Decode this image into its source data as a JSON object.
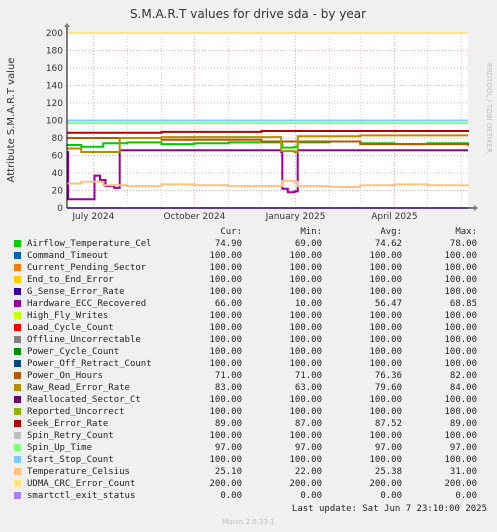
{
  "chart_data": {
    "type": "line",
    "title": "S.M.A.R.T values for drive sda - by year",
    "ylabel": "Attribute S.M.A.R.T value",
    "side_label": "RRDTOOL / TOBI OETIKER",
    "ylim": [
      0,
      200
    ],
    "yticks": [
      0,
      20,
      40,
      60,
      80,
      100,
      120,
      140,
      160,
      180,
      200
    ],
    "xlim": [
      "2024-06-07",
      "2025-06-07"
    ],
    "xticks": [
      {
        "label": "July 2024",
        "date": "2024-07-01"
      },
      {
        "label": "October 2024",
        "date": "2024-10-01"
      },
      {
        "label": "January 2025",
        "date": "2025-01-01"
      },
      {
        "label": "April 2025",
        "date": "2025-04-01"
      }
    ],
    "grid": true,
    "legend_position": "bottom",
    "series": [
      {
        "name": "Airflow_Temperature_Cel",
        "color": "#00cc00",
        "points": [
          [
            "2024-06-07",
            72
          ],
          [
            "2024-06-20",
            70
          ],
          [
            "2024-07-10",
            74
          ],
          [
            "2024-08-01",
            75
          ],
          [
            "2024-09-01",
            73
          ],
          [
            "2024-10-01",
            74
          ],
          [
            "2024-11-01",
            75
          ],
          [
            "2024-12-10",
            75
          ],
          [
            "2024-12-20",
            69
          ],
          [
            "2024-12-31",
            70
          ],
          [
            "2025-01-03",
            75
          ],
          [
            "2025-02-01",
            76
          ],
          [
            "2025-03-01",
            74
          ],
          [
            "2025-04-01",
            73
          ],
          [
            "2025-05-01",
            74
          ],
          [
            "2025-06-07",
            75
          ]
        ]
      },
      {
        "name": "Command_Timeout",
        "color": "#0066b3",
        "points": [
          [
            "2024-06-07",
            100
          ],
          [
            "2025-06-07",
            100
          ]
        ]
      },
      {
        "name": "Current_Pending_Sector",
        "color": "#ff8000",
        "points": [
          [
            "2024-06-07",
            100
          ],
          [
            "2025-06-07",
            100
          ]
        ]
      },
      {
        "name": "End_to_End_Error",
        "color": "#ffcc00",
        "points": [
          [
            "2024-06-07",
            100
          ],
          [
            "2025-06-07",
            100
          ]
        ]
      },
      {
        "name": "G_Sense_Error_Rate",
        "color": "#330099",
        "points": [
          [
            "2024-06-07",
            100
          ],
          [
            "2025-06-07",
            100
          ]
        ]
      },
      {
        "name": "Hardware_ECC_Recovered",
        "color": "#990099",
        "points": [
          [
            "2024-06-07",
            64
          ],
          [
            "2024-06-08",
            10
          ],
          [
            "2024-06-20",
            10
          ],
          [
            "2024-07-01",
            10
          ],
          [
            "2024-07-02",
            37
          ],
          [
            "2024-07-07",
            32
          ],
          [
            "2024-07-12",
            25
          ],
          [
            "2024-07-20",
            23
          ],
          [
            "2024-07-25",
            66
          ],
          [
            "2024-09-01",
            66
          ],
          [
            "2024-10-01",
            66
          ],
          [
            "2024-11-01",
            66
          ],
          [
            "2024-12-10",
            66
          ],
          [
            "2024-12-19",
            64
          ],
          [
            "2024-12-20",
            22
          ],
          [
            "2024-12-25",
            18
          ],
          [
            "2024-12-31",
            19
          ],
          [
            "2025-01-03",
            66
          ],
          [
            "2025-02-01",
            66
          ],
          [
            "2025-04-01",
            66
          ],
          [
            "2025-06-07",
            66
          ]
        ]
      },
      {
        "name": "High_Fly_Writes",
        "color": "#ccff00",
        "points": [
          [
            "2024-06-07",
            100
          ],
          [
            "2025-06-07",
            100
          ]
        ]
      },
      {
        "name": "Load_Cycle_Count",
        "color": "#ff0000",
        "points": [
          [
            "2024-06-07",
            100
          ],
          [
            "2025-06-07",
            100
          ]
        ]
      },
      {
        "name": "Offline_Uncorrectable",
        "color": "#808080",
        "points": [
          [
            "2024-06-07",
            100
          ],
          [
            "2025-06-07",
            100
          ]
        ]
      },
      {
        "name": "Power_Cycle_Count",
        "color": "#008f00",
        "points": [
          [
            "2024-06-07",
            100
          ],
          [
            "2025-06-07",
            100
          ]
        ]
      },
      {
        "name": "Power_Off_Retract_Count",
        "color": "#00487d",
        "points": [
          [
            "2024-06-07",
            100
          ],
          [
            "2025-06-07",
            100
          ]
        ]
      },
      {
        "name": "Power_On_Hours",
        "color": "#b35a00",
        "points": [
          [
            "2024-06-07",
            80
          ],
          [
            "2024-09-01",
            78
          ],
          [
            "2024-12-01",
            76
          ],
          [
            "2025-03-01",
            73
          ],
          [
            "2025-06-07",
            71
          ]
        ]
      },
      {
        "name": "Raw_Read_Error_Rate",
        "color": "#b38f00",
        "points": [
          [
            "2024-06-07",
            68
          ],
          [
            "2024-06-20",
            64
          ],
          [
            "2024-07-25",
            80
          ],
          [
            "2024-09-01",
            81
          ],
          [
            "2024-12-10",
            81
          ],
          [
            "2024-12-19",
            65
          ],
          [
            "2024-12-31",
            64
          ],
          [
            "2025-01-03",
            82
          ],
          [
            "2025-03-01",
            83
          ],
          [
            "2025-06-07",
            83
          ]
        ]
      },
      {
        "name": "Reallocated_Sector_Ct",
        "color": "#6b006b",
        "points": [
          [
            "2024-06-07",
            100
          ],
          [
            "2025-06-07",
            100
          ]
        ]
      },
      {
        "name": "Reported_Uncorrect",
        "color": "#8fb300",
        "points": [
          [
            "2024-06-07",
            100
          ],
          [
            "2025-06-07",
            100
          ]
        ]
      },
      {
        "name": "Seek_Error_Rate",
        "color": "#b30000",
        "points": [
          [
            "2024-06-07",
            86
          ],
          [
            "2024-09-01",
            87
          ],
          [
            "2024-12-01",
            88
          ],
          [
            "2025-03-01",
            88
          ],
          [
            "2025-06-07",
            89
          ]
        ]
      },
      {
        "name": "Spin_Retry_Count",
        "color": "#bebebe",
        "points": [
          [
            "2024-06-07",
            100
          ],
          [
            "2025-06-07",
            100
          ]
        ]
      },
      {
        "name": "Spin_Up_Time",
        "color": "#80ff80",
        "points": [
          [
            "2024-06-07",
            97
          ],
          [
            "2025-06-07",
            97
          ]
        ]
      },
      {
        "name": "Start_Stop_Count",
        "color": "#80c9ff",
        "points": [
          [
            "2024-06-07",
            100
          ],
          [
            "2025-06-07",
            100
          ]
        ]
      },
      {
        "name": "Temperature_Celsius",
        "color": "#ffc080",
        "points": [
          [
            "2024-06-07",
            28
          ],
          [
            "2024-06-20",
            30
          ],
          [
            "2024-07-10",
            26
          ],
          [
            "2024-08-01",
            25
          ],
          [
            "2024-09-01",
            27
          ],
          [
            "2024-10-01",
            26
          ],
          [
            "2024-11-01",
            25
          ],
          [
            "2024-12-10",
            25
          ],
          [
            "2024-12-20",
            31
          ],
          [
            "2024-12-31",
            30
          ],
          [
            "2025-01-03",
            25
          ],
          [
            "2025-02-01",
            24
          ],
          [
            "2025-03-01",
            26
          ],
          [
            "2025-04-01",
            27
          ],
          [
            "2025-05-01",
            26
          ],
          [
            "2025-06-07",
            25
          ]
        ]
      },
      {
        "name": "UDMA_CRC_Error_Count",
        "color": "#ffe680",
        "points": [
          [
            "2024-06-07",
            200
          ],
          [
            "2025-06-07",
            200
          ]
        ]
      },
      {
        "name": "smartctl_exit_status",
        "color": "#aa80ff",
        "points": [
          [
            "2024-06-07",
            0
          ],
          [
            "2025-06-07",
            0
          ]
        ]
      }
    ]
  },
  "legend": {
    "headers": {
      "cur": "Cur:",
      "min": "Min:",
      "avg": "Avg:",
      "max": "Max:"
    },
    "rows": [
      {
        "name": "Airflow_Temperature_Cel",
        "color": "#00cc00",
        "cur": "74.90",
        "min": "69.00",
        "avg": "74.62",
        "max": "78.00"
      },
      {
        "name": "Command_Timeout",
        "color": "#0066b3",
        "cur": "100.00",
        "min": "100.00",
        "avg": "100.00",
        "max": "100.00"
      },
      {
        "name": "Current_Pending_Sector",
        "color": "#ff8000",
        "cur": "100.00",
        "min": "100.00",
        "avg": "100.00",
        "max": "100.00"
      },
      {
        "name": "End_to_End_Error",
        "color": "#ffcc00",
        "cur": "100.00",
        "min": "100.00",
        "avg": "100.00",
        "max": "100.00"
      },
      {
        "name": "G_Sense_Error_Rate",
        "color": "#330099",
        "cur": "100.00",
        "min": "100.00",
        "avg": "100.00",
        "max": "100.00"
      },
      {
        "name": "Hardware_ECC_Recovered",
        "color": "#990099",
        "cur": "66.00",
        "min": "10.00",
        "avg": "56.47",
        "max": "68.85"
      },
      {
        "name": "High_Fly_Writes",
        "color": "#ccff00",
        "cur": "100.00",
        "min": "100.00",
        "avg": "100.00",
        "max": "100.00"
      },
      {
        "name": "Load_Cycle_Count",
        "color": "#ff0000",
        "cur": "100.00",
        "min": "100.00",
        "avg": "100.00",
        "max": "100.00"
      },
      {
        "name": "Offline_Uncorrectable",
        "color": "#808080",
        "cur": "100.00",
        "min": "100.00",
        "avg": "100.00",
        "max": "100.00"
      },
      {
        "name": "Power_Cycle_Count",
        "color": "#008f00",
        "cur": "100.00",
        "min": "100.00",
        "avg": "100.00",
        "max": "100.00"
      },
      {
        "name": "Power_Off_Retract_Count",
        "color": "#00487d",
        "cur": "100.00",
        "min": "100.00",
        "avg": "100.00",
        "max": "100.00"
      },
      {
        "name": "Power_On_Hours",
        "color": "#b35a00",
        "cur": "71.00",
        "min": "71.00",
        "avg": "76.36",
        "max": "82.00"
      },
      {
        "name": "Raw_Read_Error_Rate",
        "color": "#b38f00",
        "cur": "83.00",
        "min": "63.00",
        "avg": "79.60",
        "max": "84.00"
      },
      {
        "name": "Reallocated_Sector_Ct",
        "color": "#6b006b",
        "cur": "100.00",
        "min": "100.00",
        "avg": "100.00",
        "max": "100.00"
      },
      {
        "name": "Reported_Uncorrect",
        "color": "#8fb300",
        "cur": "100.00",
        "min": "100.00",
        "avg": "100.00",
        "max": "100.00"
      },
      {
        "name": "Seek_Error_Rate",
        "color": "#b30000",
        "cur": "89.00",
        "min": "87.00",
        "avg": "87.52",
        "max": "89.00"
      },
      {
        "name": "Spin_Retry_Count",
        "color": "#bebebe",
        "cur": "100.00",
        "min": "100.00",
        "avg": "100.00",
        "max": "100.00"
      },
      {
        "name": "Spin_Up_Time",
        "color": "#80ff80",
        "cur": "97.00",
        "min": "97.00",
        "avg": "97.00",
        "max": "97.00"
      },
      {
        "name": "Start_Stop_Count",
        "color": "#80c9ff",
        "cur": "100.00",
        "min": "100.00",
        "avg": "100.00",
        "max": "100.00"
      },
      {
        "name": "Temperature_Celsius",
        "color": "#ffc080",
        "cur": "25.10",
        "min": "22.00",
        "avg": "25.38",
        "max": "31.00"
      },
      {
        "name": "UDMA_CRC_Error_Count",
        "color": "#ffe680",
        "cur": "200.00",
        "min": "200.00",
        "avg": "200.00",
        "max": "200.00"
      },
      {
        "name": "smartctl_exit_status",
        "color": "#aa80ff",
        "cur": "0.00",
        "min": "0.00",
        "avg": "0.00",
        "max": "0.00"
      }
    ]
  },
  "footer": {
    "last_update": "Last update:  Sat Jun  7 23:10:00 2025",
    "version": "Munin 2.0.33-1"
  }
}
